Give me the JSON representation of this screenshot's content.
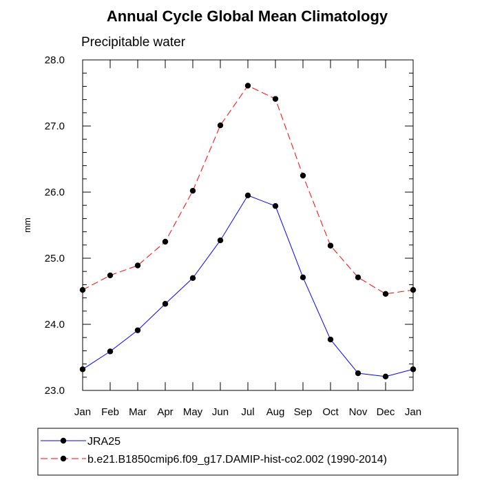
{
  "chart_data": {
    "type": "line",
    "title": "Annual Cycle Global Mean Climatology",
    "subtitle": "Precipitable water",
    "xlabel": "",
    "ylabel": "mm",
    "categories": [
      "Jan",
      "Feb",
      "Mar",
      "Apr",
      "May",
      "Jun",
      "Jul",
      "Aug",
      "Sep",
      "Oct",
      "Nov",
      "Dec",
      "Jan"
    ],
    "ylim": [
      23.0,
      28.0
    ],
    "yticks": [
      "23.0",
      "24.0",
      "25.0",
      "26.0",
      "27.0",
      "28.0"
    ],
    "grid": false,
    "legend_position": "bottom",
    "series": [
      {
        "name": "JRA25",
        "color": "#0000ff",
        "line_style": "solid",
        "marker": "filled-circle",
        "values": [
          23.32,
          23.59,
          23.91,
          24.31,
          24.7,
          25.27,
          25.95,
          25.79,
          24.71,
          23.77,
          23.26,
          23.21,
          23.32
        ]
      },
      {
        "name": "b.e21.B1850cmip6.f09_g17.DAMIP-hist-co2.002 (1990-2014)",
        "color": "#ff0000",
        "line_style": "dashed",
        "marker": "filled-circle",
        "values": [
          24.52,
          24.74,
          24.89,
          25.25,
          26.02,
          27.01,
          27.61,
          27.41,
          26.25,
          25.19,
          24.71,
          24.46,
          24.52
        ]
      }
    ]
  }
}
